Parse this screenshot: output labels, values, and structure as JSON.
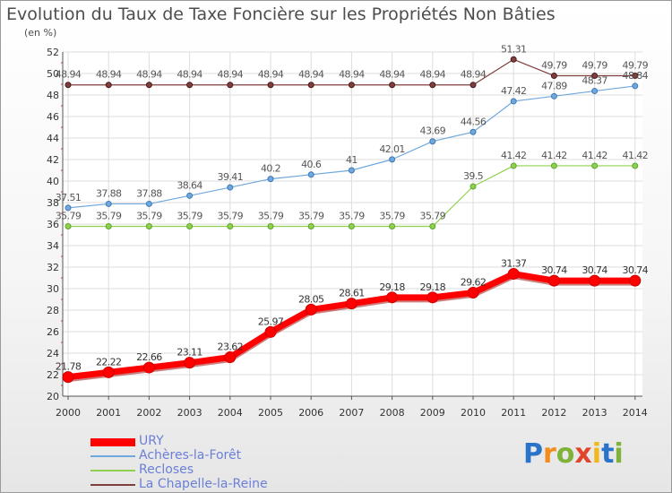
{
  "title": "Evolution du Taux de Taxe Foncière sur les Propriétés Non Bâties",
  "subtitle": "(en %)",
  "brand": {
    "letters": [
      "P",
      "r",
      "o",
      "x",
      "i",
      "t",
      "i"
    ],
    "colors": [
      "#2b73c9",
      "#f28c1d",
      "#7fb238",
      "#e2442b",
      "#f0b81c",
      "#2b73c9",
      "#7fb238"
    ]
  },
  "chart_data": {
    "type": "line",
    "title": "Evolution du Taux de Taxe Foncière sur les Propriétés Non Bâties",
    "ylabel": "(en %)",
    "xlabel": "",
    "x": [
      "2000",
      "2001",
      "2002",
      "2003",
      "2004",
      "2005",
      "2006",
      "2007",
      "2008",
      "2009",
      "2010",
      "2011",
      "2012",
      "2013",
      "2014"
    ],
    "ylim": [
      20,
      52
    ],
    "yticks": [
      "20",
      "22",
      "24",
      "26",
      "28",
      "30",
      "32",
      "34",
      "36",
      "38",
      "40",
      "42",
      "44",
      "46",
      "48",
      "50",
      "52"
    ],
    "grid": true,
    "legend_position": "bottom-left",
    "series": [
      {
        "name": "URY",
        "color": "#ff0000",
        "values": [
          21.78,
          22.22,
          22.66,
          23.11,
          23.62,
          25.97,
          28.05,
          28.61,
          29.18,
          29.18,
          29.62,
          31.37,
          30.74,
          30.74,
          30.74
        ],
        "labels": [
          "21.78",
          "22.22",
          "22.66",
          "23.11",
          "23.62",
          "25.97",
          "28.05",
          "28.61",
          "29.18",
          "29.18",
          "29.62",
          "31.37",
          "30.74",
          "30.74",
          "30.74"
        ]
      },
      {
        "name": "Achères-la-Forêt",
        "color": "#6fa8dc",
        "values": [
          37.51,
          37.88,
          37.88,
          38.64,
          39.41,
          40.2,
          40.6,
          41,
          42.01,
          43.69,
          44.56,
          47.42,
          47.89,
          48.37,
          48.84
        ],
        "labels": [
          "37.51",
          "37.88",
          "37.88",
          "38.64",
          "39.41",
          "40.2",
          "40.6",
          "41",
          "42.01",
          "43.69",
          "44.56",
          "47.42",
          "47.89",
          "48.37",
          "48.84"
        ]
      },
      {
        "name": "Recloses",
        "color": "#8fd14f",
        "values": [
          35.79,
          35.79,
          35.79,
          35.79,
          35.79,
          35.79,
          35.79,
          35.79,
          35.79,
          35.79,
          39.5,
          41.42,
          41.42,
          41.42,
          41.42
        ],
        "labels": [
          "35.79",
          "35.79",
          "35.79",
          "35.79",
          "35.79",
          "35.79",
          "35.79",
          "35.79",
          "35.79",
          "35.79",
          "39.5",
          "41.42",
          "41.42",
          "41.42",
          "41.42"
        ]
      },
      {
        "name": "La Chapelle-la-Reine",
        "color": "#7f3f3f",
        "values": [
          48.94,
          48.94,
          48.94,
          48.94,
          48.94,
          48.94,
          48.94,
          48.94,
          48.94,
          48.94,
          48.94,
          51.31,
          49.79,
          49.79,
          49.79
        ],
        "labels": [
          "48.94",
          "48.94",
          "48.94",
          "48.94",
          "48.94",
          "48.94",
          "48.94",
          "48.94",
          "48.94",
          "48.94",
          "48.94",
          "51.31",
          "49.79",
          "49.79",
          "49.79"
        ]
      }
    ]
  }
}
